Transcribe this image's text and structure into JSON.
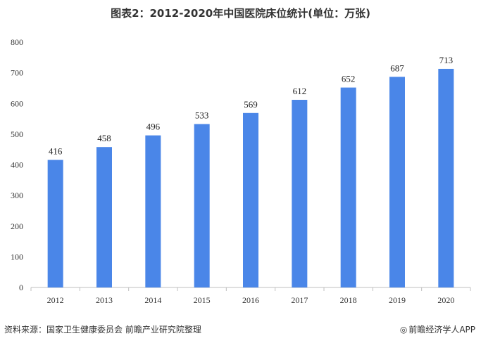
{
  "title": "图表2：2012-2020年中国医院床位统计(单位：万张)",
  "footer": {
    "source": "资料来源：国家卫生健康委员会 前瞻产业研究院整理",
    "brand": "前瞻经济学人APP",
    "brand_icon": "circle-logo-icon"
  },
  "colors": {
    "bar": "#4A86E8",
    "axis": "#bfbfbf",
    "grid": "#d9d9d9"
  },
  "chart_data": {
    "type": "bar",
    "title": "图表2：2012-2020年中国医院床位统计(单位：万张)",
    "categories": [
      "2012",
      "2013",
      "2014",
      "2015",
      "2016",
      "2017",
      "2018",
      "2019",
      "2020"
    ],
    "values": [
      416,
      458,
      496,
      533,
      569,
      612,
      652,
      687,
      713
    ],
    "xlabel": "",
    "ylabel": "",
    "ylim": [
      0,
      800
    ],
    "yticks": [
      0,
      100,
      200,
      300,
      400,
      500,
      600,
      700,
      800
    ],
    "grid": false,
    "legend": "none"
  }
}
